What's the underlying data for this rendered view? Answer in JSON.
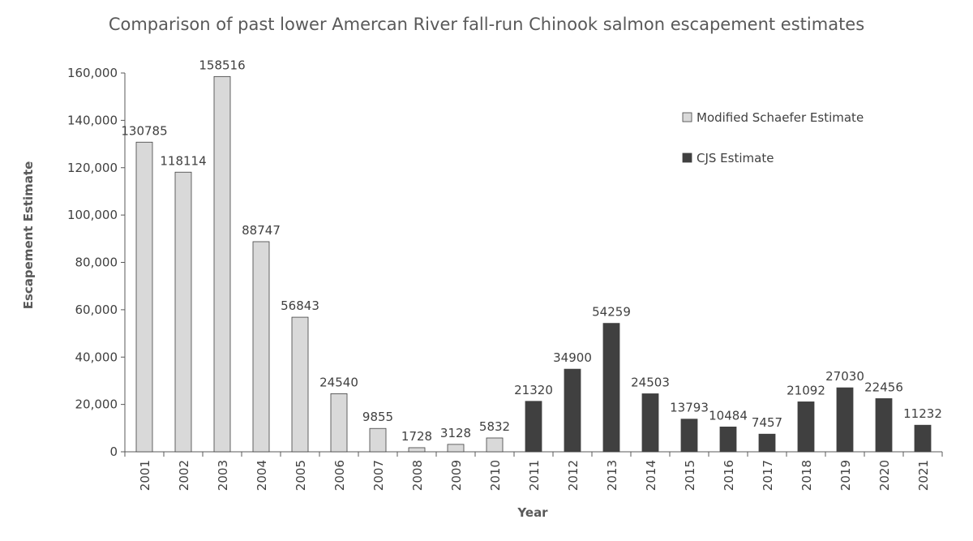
{
  "chart_data": {
    "type": "bar",
    "title": "Comparison of past lower Amercan River fall-run Chinook salmon escapement estimates",
    "xlabel": "Year",
    "ylabel": "Escapement Estimate",
    "ylim": [
      0,
      160000
    ],
    "yticks": [
      0,
      20000,
      40000,
      60000,
      80000,
      100000,
      120000,
      140000,
      160000
    ],
    "ytick_labels": [
      "0",
      "20,000",
      "40,000",
      "60,000",
      "80,000",
      "100,000",
      "120,000",
      "140,000",
      "160,000"
    ],
    "grid": false,
    "legend_position": "top-right",
    "categories": [
      "2001",
      "2002",
      "2003",
      "2004",
      "2005",
      "2006",
      "2007",
      "2008",
      "2009",
      "2010",
      "2011",
      "2012",
      "2013",
      "2014",
      "2015",
      "2016",
      "2017",
      "2018",
      "2019",
      "2020",
      "2021"
    ],
    "series": [
      {
        "name": "Modified Schaefer Estimate",
        "color": "#d9d9d9",
        "values": [
          130785,
          118114,
          158516,
          88747,
          56843,
          24540,
          9855,
          1728,
          3128,
          5832,
          null,
          null,
          null,
          null,
          null,
          null,
          null,
          null,
          null,
          null,
          null
        ]
      },
      {
        "name": "CJS Estimate",
        "color": "#404040",
        "values": [
          null,
          null,
          null,
          null,
          null,
          null,
          null,
          null,
          null,
          null,
          21320,
          34900,
          54259,
          24503,
          13793,
          10484,
          7457,
          21092,
          27030,
          22456,
          11232
        ]
      }
    ]
  }
}
